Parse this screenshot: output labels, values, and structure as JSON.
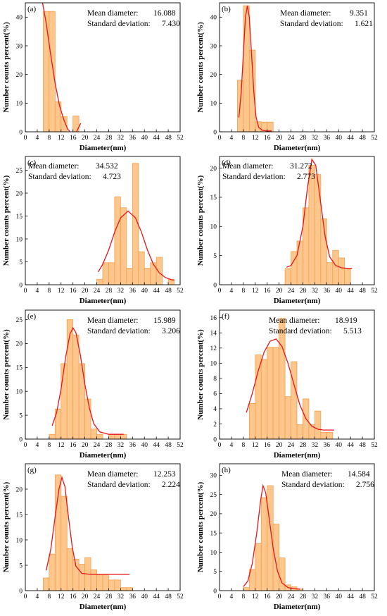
{
  "chart_data": [
    {
      "panel": "(a)",
      "type": "bar",
      "xlabel": "Diameter(nm)",
      "ylabel": "Number counts percent(%)",
      "xlim": [
        0,
        52
      ],
      "ylim": [
        0,
        45
      ],
      "xticks": [
        0,
        4,
        8,
        12,
        16,
        20,
        24,
        28,
        32,
        36,
        40,
        44,
        48,
        52
      ],
      "yticks": [
        0,
        10,
        20,
        30,
        40
      ],
      "stats": {
        "mean_label": "Mean diameter:",
        "mean_value": "16.088",
        "sd_label": "Standard deviation:",
        "sd_value": "7.430"
      },
      "bins": [
        [
          6,
          8,
          42
        ],
        [
          8,
          10,
          42
        ],
        [
          10,
          12,
          10.5
        ],
        [
          12,
          14,
          5.3
        ],
        [
          16,
          18,
          5.5
        ]
      ],
      "fit": [
        [
          5.6,
          46
        ],
        [
          7,
          38
        ],
        [
          8.5,
          27
        ],
        [
          10,
          17
        ],
        [
          11.5,
          9
        ],
        [
          13,
          4
        ],
        [
          14.2,
          1
        ],
        [
          15,
          0
        ]
      ],
      "fit_tail": [
        [
          17.2,
          0
        ],
        [
          18.6,
          3
        ]
      ]
    },
    {
      "panel": "(b)",
      "type": "bar",
      "xlabel": "Diameter(nm)",
      "ylabel": "Number counts percent(%)",
      "xlim": [
        0,
        52
      ],
      "ylim": [
        0,
        45
      ],
      "xticks": [
        0,
        4,
        8,
        12,
        16,
        20,
        24,
        28,
        32,
        36,
        40,
        44,
        48,
        52
      ],
      "yticks": [
        0,
        10,
        20,
        30,
        40
      ],
      "stats": {
        "mean_label": "Mean diameter:",
        "mean_value": "9.351",
        "sd_label": "Standard deviation:",
        "sd_value": "1.621"
      },
      "bins": [
        [
          6,
          8,
          18
        ],
        [
          8,
          10,
          44
        ],
        [
          10,
          12,
          28.5
        ],
        [
          12,
          14,
          3.5
        ],
        [
          14,
          16,
          3.4
        ],
        [
          16,
          18,
          3.4
        ]
      ],
      "fit": [
        [
          6.5,
          5
        ],
        [
          7.3,
          14
        ],
        [
          8,
          27
        ],
        [
          8.7,
          40
        ],
        [
          9.35,
          44
        ],
        [
          10,
          40
        ],
        [
          10.7,
          28
        ],
        [
          11.5,
          14
        ],
        [
          12.3,
          5
        ],
        [
          13.2,
          1.5
        ],
        [
          14.5,
          0.5
        ],
        [
          16,
          0.3
        ],
        [
          17.5,
          0.3
        ]
      ]
    },
    {
      "panel": "(c)",
      "type": "bar",
      "xlabel": "Diameter(nm)",
      "ylabel": "Number counts percent(%)",
      "xlim": [
        0,
        52
      ],
      "ylim": [
        0,
        28
      ],
      "xticks": [
        0,
        4,
        8,
        12,
        16,
        20,
        24,
        28,
        32,
        36,
        40,
        44,
        48,
        52
      ],
      "yticks": [
        0,
        5,
        10,
        15,
        20,
        25
      ],
      "stats": {
        "mean_label": "Mean diameter:",
        "mean_value": "34.532",
        "sd_label": "Standard deviation:",
        "sd_value": "4.723"
      },
      "bins": [
        [
          24,
          26,
          1.2
        ],
        [
          26,
          28,
          4.8
        ],
        [
          28,
          30,
          4.8
        ],
        [
          30,
          32,
          19.2
        ],
        [
          32,
          34,
          16.8
        ],
        [
          34,
          36,
          3.6
        ],
        [
          36,
          38,
          26.5
        ],
        [
          38,
          40,
          7.2
        ],
        [
          40,
          42,
          3.6
        ],
        [
          42,
          44,
          4.8
        ],
        [
          44,
          46,
          6.0
        ],
        [
          48,
          50,
          1.2
        ]
      ],
      "fit": [
        [
          24.5,
          2.8
        ],
        [
          26,
          4.5
        ],
        [
          28,
          7.6
        ],
        [
          30,
          11.5
        ],
        [
          32,
          14.6
        ],
        [
          34.5,
          16.1
        ],
        [
          37,
          14.6
        ],
        [
          39,
          11.5
        ],
        [
          41,
          7.6
        ],
        [
          43,
          4.5
        ],
        [
          45,
          2.6
        ],
        [
          47,
          1.6
        ],
        [
          49,
          1.1
        ],
        [
          50,
          1.0
        ]
      ]
    },
    {
      "panel": "(d)",
      "type": "bar",
      "xlabel": "Diameter(nm)",
      "ylabel": "Number counts percent(%)",
      "xlim": [
        0,
        52
      ],
      "ylim": [
        0,
        22
      ],
      "xticks": [
        0,
        4,
        8,
        12,
        16,
        20,
        24,
        28,
        32,
        36,
        40,
        44,
        48,
        52
      ],
      "yticks": [
        0,
        5,
        10,
        15,
        20
      ],
      "stats": {
        "mean_label": "Mean diameter:",
        "mean_value": "31.272",
        "sd_label": "Standard deviation:",
        "sd_value": "2.773"
      },
      "bins": [
        [
          22,
          24,
          2.8
        ],
        [
          24,
          26,
          5.7
        ],
        [
          26,
          28,
          7.5
        ],
        [
          28,
          30,
          13.2
        ],
        [
          30,
          32,
          20.5
        ],
        [
          32,
          34,
          18.9
        ],
        [
          34,
          36,
          11.3
        ],
        [
          36,
          38,
          3.8
        ],
        [
          38,
          40,
          5.9
        ],
        [
          40,
          42,
          4.6
        ],
        [
          42,
          44,
          2.8
        ]
      ],
      "fit": [
        [
          22.5,
          3.0
        ],
        [
          24,
          3.3
        ],
        [
          26,
          5.0
        ],
        [
          28,
          10.0
        ],
        [
          29.5,
          16.5
        ],
        [
          31,
          21.5
        ],
        [
          32.3,
          20.5
        ],
        [
          34,
          14.0
        ],
        [
          35.5,
          8.2
        ],
        [
          37,
          4.8
        ],
        [
          39,
          3.3
        ],
        [
          41,
          2.9
        ],
        [
          43,
          2.8
        ],
        [
          44.5,
          2.8
        ]
      ]
    },
    {
      "panel": "(e)",
      "type": "bar",
      "xlabel": "Diameter(nm)",
      "ylabel": "Number counts percent(%)",
      "xlim": [
        0,
        52
      ],
      "ylim": [
        0,
        27
      ],
      "xticks": [
        0,
        4,
        8,
        12,
        16,
        20,
        24,
        28,
        32,
        36,
        40,
        44,
        48,
        52
      ],
      "yticks": [
        0,
        5,
        10,
        15,
        20,
        25
      ],
      "stats": {
        "mean_label": "Mean diameter:",
        "mean_value": "15.989",
        "sd_label": "Standard deviation:",
        "sd_value": "3.206"
      },
      "bins": [
        [
          8,
          10,
          1.0
        ],
        [
          10,
          12,
          6.3
        ],
        [
          12,
          14,
          15.8
        ],
        [
          14,
          16,
          25.0
        ],
        [
          16,
          18,
          21.8
        ],
        [
          18,
          20,
          15.8
        ],
        [
          20,
          22,
          8.4
        ],
        [
          22,
          24,
          2.1
        ],
        [
          24,
          26,
          1.0
        ],
        [
          28,
          30,
          1.0
        ],
        [
          30,
          32,
          1.0
        ],
        [
          32,
          34,
          1.0
        ]
      ],
      "fit": [
        [
          9,
          2.8
        ],
        [
          10.5,
          5.5
        ],
        [
          12,
          10.5
        ],
        [
          13.5,
          17.0
        ],
        [
          15,
          22.0
        ],
        [
          16,
          23.3
        ],
        [
          17,
          22.3
        ],
        [
          18.5,
          17.5
        ],
        [
          20,
          11.5
        ],
        [
          21.5,
          6.5
        ],
        [
          23,
          3.2
        ],
        [
          25,
          1.5
        ],
        [
          28,
          1.0
        ],
        [
          30,
          1.0
        ],
        [
          33,
          1.0
        ]
      ]
    },
    {
      "panel": "(f)",
      "type": "bar",
      "xlabel": "Diameter(nm)",
      "ylabel": "Number counts percent(%)",
      "xlim": [
        0,
        52
      ],
      "ylim": [
        0,
        17
      ],
      "xticks": [
        0,
        4,
        8,
        12,
        16,
        20,
        24,
        28,
        32,
        36,
        40,
        44,
        48,
        52
      ],
      "yticks": [
        0,
        2,
        4,
        6,
        8,
        10,
        12,
        14,
        16
      ],
      "stats": {
        "mean_label": "Mean diameter:",
        "mean_value": "18.919",
        "sd_label": "Standard deviation:",
        "sd_value": "5.513"
      },
      "bins": [
        [
          10,
          12,
          4.7
        ],
        [
          12,
          14,
          11.1
        ],
        [
          14,
          16,
          10.5
        ],
        [
          16,
          18,
          12.1
        ],
        [
          18,
          20,
          12.1
        ],
        [
          20,
          22,
          15.9
        ],
        [
          22,
          24,
          5.6
        ],
        [
          24,
          26,
          10.2
        ],
        [
          26,
          28,
          1.9
        ],
        [
          28,
          30,
          5.3
        ],
        [
          30,
          32,
          1.9
        ],
        [
          32,
          34,
          3.7
        ],
        [
          34,
          36,
          0.9
        ],
        [
          36,
          38,
          0.9
        ]
      ],
      "fit": [
        [
          9,
          3.5
        ],
        [
          11,
          6.0
        ],
        [
          13,
          9.0
        ],
        [
          15,
          11.5
        ],
        [
          17,
          12.9
        ],
        [
          19,
          13.2
        ],
        [
          21,
          12.2
        ],
        [
          23,
          10.0
        ],
        [
          25,
          7.2
        ],
        [
          27,
          4.5
        ],
        [
          29,
          2.7
        ],
        [
          31,
          1.7
        ],
        [
          33,
          1.3
        ],
        [
          35,
          1.2
        ],
        [
          38.5,
          1.2
        ]
      ]
    },
    {
      "panel": "(g)",
      "type": "bar",
      "xlabel": "Diameter(nm)",
      "ylabel": "Number counts percent(%)",
      "xlim": [
        0,
        52
      ],
      "ylim": [
        0,
        25
      ],
      "xticks": [
        0,
        4,
        8,
        12,
        16,
        20,
        24,
        28,
        32,
        36,
        40,
        44,
        48,
        52
      ],
      "yticks": [
        0,
        5,
        10,
        15,
        20
      ],
      "stats": {
        "mean_label": "Mean diameter:",
        "mean_value": "12.253",
        "sd_label": "Standard deviation:",
        "sd_value": "2.224"
      },
      "bins": [
        [
          6,
          8,
          2.5
        ],
        [
          8,
          10,
          7.2
        ],
        [
          10,
          12,
          22.8
        ],
        [
          12,
          14,
          18.6
        ],
        [
          14,
          16,
          8.3
        ],
        [
          16,
          18,
          6.2
        ],
        [
          18,
          20,
          5.2
        ],
        [
          20,
          22,
          6.5
        ],
        [
          22,
          24,
          4.1
        ],
        [
          24,
          26,
          3.1
        ],
        [
          26,
          28,
          3.1
        ],
        [
          28,
          30,
          2.1
        ],
        [
          30,
          32,
          2.1
        ],
        [
          32,
          34,
          0.6
        ],
        [
          34,
          36,
          0.6
        ]
      ],
      "fit": [
        [
          7,
          4.0
        ],
        [
          8.5,
          8.0
        ],
        [
          10,
          14.5
        ],
        [
          11.3,
          20.0
        ],
        [
          12.3,
          22.3
        ],
        [
          13.3,
          20.5
        ],
        [
          14.5,
          14.5
        ],
        [
          15.8,
          8.5
        ],
        [
          17,
          4.8
        ],
        [
          19,
          3.4
        ],
        [
          22,
          3.2
        ],
        [
          26,
          3.2
        ],
        [
          30,
          3.2
        ],
        [
          35,
          3.2
        ]
      ]
    },
    {
      "panel": "(h)",
      "type": "bar",
      "xlabel": "Diameter(nm)",
      "ylabel": "Number counts percent(%)",
      "xlim": [
        0,
        52
      ],
      "ylim": [
        0,
        33
      ],
      "xticks": [
        0,
        4,
        8,
        12,
        16,
        20,
        24,
        28,
        32,
        36,
        40,
        44,
        48,
        52
      ],
      "yticks": [
        0,
        5,
        10,
        15,
        20,
        25,
        30
      ],
      "stats": {
        "mean_label": "Mean diameter:",
        "mean_value": "14.584",
        "sd_label": "Standard deviation:",
        "sd_value": "2.756"
      },
      "bins": [
        [
          8,
          10,
          0.8
        ],
        [
          10,
          12,
          5.5
        ],
        [
          12,
          14,
          12.2
        ],
        [
          14,
          16,
          24.2
        ],
        [
          16,
          18,
          27.3
        ],
        [
          18,
          20,
          17.3
        ],
        [
          20,
          22,
          8.5
        ],
        [
          22,
          24,
          1.5
        ],
        [
          24,
          26,
          1.0
        ],
        [
          26,
          28,
          0.4
        ]
      ],
      "fit": [
        [
          8,
          1.0
        ],
        [
          9.5,
          2.5
        ],
        [
          11,
          7.0
        ],
        [
          12.5,
          15.0
        ],
        [
          13.8,
          23.5
        ],
        [
          14.6,
          27.3
        ],
        [
          15.5,
          25.5
        ],
        [
          16.8,
          18.0
        ],
        [
          18,
          11.0
        ],
        [
          19.5,
          5.0
        ],
        [
          21,
          2.0
        ],
        [
          23,
          0.8
        ],
        [
          25,
          0.5
        ],
        [
          27,
          0.4
        ]
      ]
    }
  ]
}
